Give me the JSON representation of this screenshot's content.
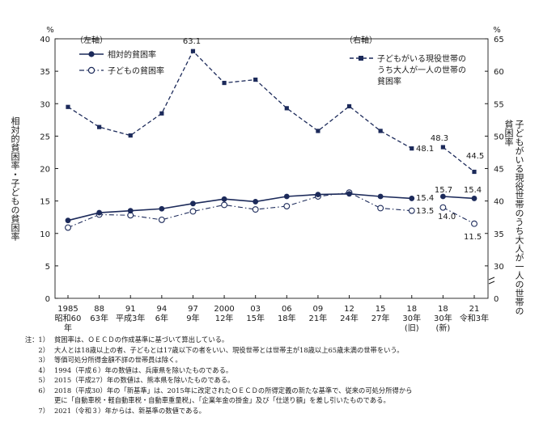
{
  "chart_data": {
    "type": "line",
    "left_axis": {
      "label": "相対的貧困率・子どもの貧困率",
      "unit": "%",
      "range": [
        0,
        40
      ],
      "ticks": [
        0,
        5,
        10,
        15,
        20,
        25,
        30,
        35,
        40
      ],
      "tag": "（左軸）"
    },
    "right_axis": {
      "label": "子どもがいる現役世帯のうち大人が一人の世帯の貧困率",
      "unit": "%",
      "range": [
        25,
        65
      ],
      "ticks": [
        30,
        35,
        40,
        45,
        50,
        55,
        60,
        65
      ],
      "tick_bottom": "0",
      "tag": "（右軸）"
    },
    "categories": [
      {
        "top": "1985",
        "mid": "昭和60",
        "bot": "年"
      },
      {
        "top": "88",
        "mid": "63年",
        "bot": ""
      },
      {
        "top": "91",
        "mid": "平成3年",
        "bot": ""
      },
      {
        "top": "94",
        "mid": "6年",
        "bot": ""
      },
      {
        "top": "97",
        "mid": "9年",
        "bot": ""
      },
      {
        "top": "2000",
        "mid": "12年",
        "bot": ""
      },
      {
        "top": "03",
        "mid": "15年",
        "bot": ""
      },
      {
        "top": "06",
        "mid": "18年",
        "bot": ""
      },
      {
        "top": "09",
        "mid": "21年",
        "bot": ""
      },
      {
        "top": "12",
        "mid": "24年",
        "bot": ""
      },
      {
        "top": "15",
        "mid": "27年",
        "bot": ""
      },
      {
        "top": "18",
        "mid": "30年",
        "bot": "(旧)"
      },
      {
        "top": "18",
        "mid": "30年",
        "bot": "(新)"
      },
      {
        "top": "21",
        "mid": "令和3年",
        "bot": ""
      }
    ],
    "series": [
      {
        "name": "相対的貧困率",
        "axis": "left",
        "style": "solid-filled",
        "values": [
          12.0,
          13.2,
          13.5,
          13.8,
          14.6,
          15.3,
          14.9,
          15.7,
          16.0,
          16.1,
          15.7,
          15.4,
          15.7,
          15.4
        ]
      },
      {
        "name": "子どもの貧困率",
        "axis": "left",
        "style": "dashdot-open",
        "values": [
          10.9,
          12.9,
          12.8,
          12.1,
          13.4,
          14.4,
          13.7,
          14.2,
          15.7,
          16.3,
          13.9,
          13.5,
          14.0,
          11.5
        ]
      },
      {
        "name": "子どもがいる現役世帯のうち大人が一人の世帯の貧困率",
        "axis": "right",
        "style": "dash-square",
        "values": [
          54.5,
          51.4,
          50.1,
          53.5,
          63.1,
          58.2,
          58.7,
          54.3,
          50.8,
          54.6,
          50.8,
          48.1,
          48.3,
          44.5
        ]
      }
    ],
    "legend": {
      "poverty": "相対的貧困率",
      "child": "子どもの貧困率",
      "single_line1": "子どもがいる現役世帯の",
      "single_line2": "うち大人が一人の世帯の",
      "single_line3": "貧困率"
    },
    "annotations": {
      "peak": "63.1",
      "s_old": "48.1",
      "s_new": "48.3",
      "s_21": "44.5",
      "p_old": "15.4",
      "p_new": "15.7",
      "p_21": "15.4",
      "c_old": "13.5",
      "c_new": "14.0",
      "c_21": "11.5"
    }
  },
  "notes": [
    {
      "num": "注：1）",
      "text": "貧困率は、ＯＥＣＤの作成基準に基づいて算出している。"
    },
    {
      "num": "2）",
      "text": "大人とは18歳以上の者、子どもとは17歳以下の者をいい、現役世帯とは世帯主が18歳以上65歳未満の世帯をいう。"
    },
    {
      "num": "3）",
      "text": "等価可処分所得金額不詳の世帯員は除く。"
    },
    {
      "num": "4）",
      "text": "1994（平成６）年の数値は、兵庫県を除いたものである。"
    },
    {
      "num": "5）",
      "text": "2015（平成27）年の数値は、熊本県を除いたものである。"
    },
    {
      "num": "6）",
      "text": "2018（平成30）年の「新基準」は、2015年に改定されたＯＥＣＤの所得定義の新たな基準で、従来の可処分所得から\n更に「自動車税・軽自動車税・自動車重量税」、「企業年金の掛金」及び「仕送り額」を差し引いたものである。"
    },
    {
      "num": "7）",
      "text": "2021（令和３）年からは、新基準の数値である。"
    }
  ]
}
